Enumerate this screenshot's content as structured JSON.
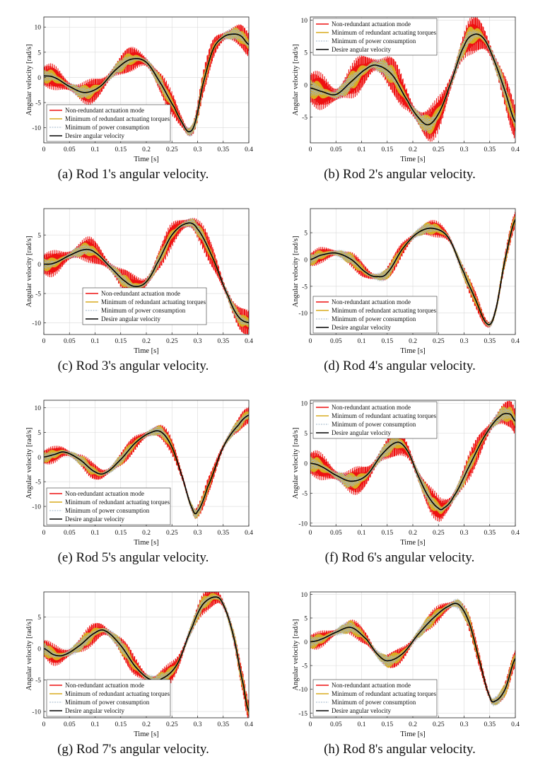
{
  "series_names": [
    "Non-redundant actuation mode",
    "Minimum of redundant actuating torques",
    "Minimum of power consumption",
    "Desire angular velocity"
  ],
  "colors": {
    "non_redundant": "#ee1111",
    "min_torque": "#d9ab1f",
    "min_power": "#9fb6c8",
    "desired": "#000000"
  },
  "xlabel": "Time [s]",
  "ylabel": "Angular velocity [rad/s]",
  "chart_data": [
    {
      "type": "line",
      "caption": "(a) Rod 1's angular velocity.",
      "xlim": [
        0,
        0.4
      ],
      "xticks": [
        "0",
        "0.05",
        "0.1",
        "0.15",
        "0.2",
        "0.25",
        "0.3",
        "0.35",
        "0.4"
      ],
      "ylim": [
        -13,
        12
      ],
      "yticks": [
        "-10",
        "-5",
        "0",
        "5",
        "10"
      ],
      "legend": "bottom-left",
      "desired": {
        "x": [
          0,
          0.02,
          0.05,
          0.08,
          0.11,
          0.14,
          0.17,
          0.2,
          0.23,
          0.255,
          0.27,
          0.283,
          0.295,
          0.31,
          0.33,
          0.35,
          0.37,
          0.385,
          0.4
        ],
        "y": [
          0.3,
          0.0,
          -1.8,
          -3.0,
          -1.8,
          1.5,
          3.6,
          3.0,
          -1.5,
          -6.0,
          -9.0,
          -10.8,
          -9.0,
          -1.5,
          5.5,
          8.0,
          8.6,
          8.2,
          6.5
        ]
      },
      "band_red": 2.6,
      "band_yellow": 1.5
    },
    {
      "type": "line",
      "caption": "(b) Rod 2's angular velocity.",
      "xlim": [
        0,
        0.4
      ],
      "xticks": [
        "0",
        "0.05",
        "0.1",
        "0.15",
        "0.2",
        "0.25",
        "0.3",
        "0.35",
        "0.4"
      ],
      "ylim": [
        -9,
        10.5
      ],
      "yticks": [
        "-5",
        "0",
        "5",
        "10"
      ],
      "legend": "top-left",
      "desired": {
        "x": [
          0,
          0.02,
          0.05,
          0.08,
          0.11,
          0.13,
          0.16,
          0.19,
          0.21,
          0.23,
          0.25,
          0.27,
          0.3,
          0.32,
          0.34,
          0.36,
          0.38,
          0.4
        ],
        "y": [
          -0.5,
          -1.0,
          -1.5,
          0.5,
          2.5,
          3.0,
          1.5,
          -2.5,
          -5.0,
          -6.2,
          -4.5,
          -0.5,
          6.0,
          7.8,
          7.0,
          3.5,
          -1.0,
          -5.8
        ]
      },
      "band_red": 3.0,
      "band_yellow": 1.6
    },
    {
      "type": "line",
      "caption": "(c) Rod 3's angular velocity.",
      "xlim": [
        0,
        0.4
      ],
      "xticks": [
        "0",
        "0.05",
        "0.1",
        "0.15",
        "0.2",
        "0.25",
        "0.3",
        "0.35",
        "0.4"
      ],
      "ylim": [
        -12,
        9.5
      ],
      "yticks": [
        "-10",
        "-5",
        "0",
        "5"
      ],
      "legend": "bottom-center",
      "desired": {
        "x": [
          0,
          0.02,
          0.05,
          0.08,
          0.1,
          0.13,
          0.16,
          0.18,
          0.2,
          0.22,
          0.25,
          0.28,
          0.3,
          0.33,
          0.36,
          0.38,
          0.4
        ],
        "y": [
          0.0,
          0.2,
          1.5,
          2.5,
          2.0,
          -0.5,
          -3.0,
          -3.8,
          -3.0,
          0.0,
          5.0,
          7.0,
          6.0,
          1.0,
          -5.5,
          -9.0,
          -10.0
        ]
      },
      "band_red": 2.3,
      "band_yellow": 1.2
    },
    {
      "type": "line",
      "caption": "(d) Rod 4's angular velocity.",
      "xlim": [
        0,
        0.4
      ],
      "xticks": [
        "0",
        "0.05",
        "0.1",
        "0.15",
        "0.2",
        "0.25",
        "0.3",
        "0.35",
        "0.4"
      ],
      "ylim": [
        -14,
        9.5
      ],
      "yticks": [
        "-10",
        "-5",
        "0",
        "5"
      ],
      "legend": "bottom-left",
      "desired": {
        "x": [
          0,
          0.02,
          0.05,
          0.08,
          0.11,
          0.13,
          0.15,
          0.18,
          0.21,
          0.24,
          0.27,
          0.3,
          0.32,
          0.345,
          0.36,
          0.38,
          0.4
        ],
        "y": [
          0.0,
          0.8,
          1.2,
          0.0,
          -2.5,
          -3.2,
          -2.5,
          2.0,
          5.0,
          5.8,
          4.0,
          -2.5,
          -7.0,
          -12.0,
          -10.0,
          0.0,
          7.5
        ]
      },
      "band_red": 1.6,
      "band_yellow": 1.2
    },
    {
      "type": "line",
      "caption": "(e) Rod 5's angular velocity.",
      "xlim": [
        0,
        0.4
      ],
      "xticks": [
        "0",
        "0.05",
        "0.1",
        "0.15",
        "0.2",
        "0.25",
        "0.3",
        "0.35",
        "0.4"
      ],
      "ylim": [
        -14,
        11.5
      ],
      "yticks": [
        "-10",
        "-5",
        "0",
        "5",
        "10"
      ],
      "legend": "bottom-left",
      "desired": {
        "x": [
          0,
          0.02,
          0.04,
          0.07,
          0.1,
          0.12,
          0.15,
          0.18,
          0.21,
          0.23,
          0.25,
          0.27,
          0.29,
          0.3,
          0.32,
          0.35,
          0.38,
          0.4
        ],
        "y": [
          0.0,
          0.5,
          1.0,
          -0.5,
          -3.0,
          -3.2,
          -0.5,
          3.0,
          5.0,
          5.0,
          2.0,
          -4.0,
          -10.5,
          -11.0,
          -6.0,
          2.0,
          6.5,
          8.5
        ]
      },
      "band_red": 1.8,
      "band_yellow": 1.2
    },
    {
      "type": "line",
      "caption": "(f) Rod 6's angular velocity.",
      "xlim": [
        0,
        0.4
      ],
      "xticks": [
        "0",
        "0.05",
        "0.1",
        "0.15",
        "0.2",
        "0.25",
        "0.3",
        "0.35",
        "0.4"
      ],
      "ylim": [
        -10.5,
        10.5
      ],
      "yticks": [
        "-10",
        "-5",
        "0",
        "5",
        "10"
      ],
      "legend": "top-left",
      "desired": {
        "x": [
          0,
          0.02,
          0.05,
          0.08,
          0.11,
          0.14,
          0.17,
          0.19,
          0.21,
          0.23,
          0.25,
          0.26,
          0.28,
          0.31,
          0.34,
          0.37,
          0.39,
          0.4
        ],
        "y": [
          0.0,
          -0.5,
          -2.0,
          -3.0,
          -2.0,
          1.5,
          3.5,
          2.0,
          -2.0,
          -5.5,
          -7.5,
          -7.5,
          -5.5,
          -0.5,
          4.5,
          7.8,
          8.2,
          7.0
        ]
      },
      "band_red": 2.4,
      "band_yellow": 1.4
    },
    {
      "type": "line",
      "caption": "(g) Rod 7's angular velocity.",
      "xlim": [
        0,
        0.4
      ],
      "xticks": [
        "0",
        "0.05",
        "0.1",
        "0.15",
        "0.2",
        "0.25",
        "0.3",
        "0.35",
        "0.4"
      ],
      "ylim": [
        -11,
        9
      ],
      "yticks": [
        "-10",
        "-5",
        "0",
        "5"
      ],
      "legend": "bottom-left",
      "desired": {
        "x": [
          0,
          0.02,
          0.04,
          0.07,
          0.1,
          0.12,
          0.15,
          0.18,
          0.21,
          0.23,
          0.26,
          0.29,
          0.31,
          0.335,
          0.35,
          0.37,
          0.39,
          0.4
        ],
        "y": [
          0.0,
          -1.0,
          -1.0,
          0.5,
          2.5,
          2.8,
          0.5,
          -3.0,
          -5.0,
          -4.8,
          -2.5,
          3.5,
          7.0,
          8.2,
          7.0,
          2.0,
          -6.0,
          -10.0
        ]
      },
      "band_red": 1.8,
      "band_yellow": 1.2
    },
    {
      "type": "line",
      "caption": "(h) Rod 8's angular velocity.",
      "xlim": [
        0,
        0.4
      ],
      "xticks": [
        "0",
        "0.05",
        "0.1",
        "0.15",
        "0.2",
        "0.25",
        "0.3",
        "0.35",
        "0.4"
      ],
      "ylim": [
        -16,
        10.5
      ],
      "yticks": [
        "-15",
        "-10",
        "-5",
        "0",
        "5",
        "10"
      ],
      "legend": "bottom-left",
      "desired": {
        "x": [
          0,
          0.02,
          0.05,
          0.08,
          0.11,
          0.13,
          0.15,
          0.18,
          0.21,
          0.24,
          0.27,
          0.29,
          0.31,
          0.33,
          0.35,
          0.36,
          0.38,
          0.4
        ],
        "y": [
          0.0,
          0.5,
          2.0,
          3.0,
          0.5,
          -2.5,
          -4.0,
          -2.5,
          1.5,
          5.0,
          7.5,
          7.8,
          4.0,
          -4.0,
          -11.5,
          -12.5,
          -10.0,
          -3.5
        ]
      },
      "band_red": 1.9,
      "band_yellow": 1.5
    }
  ]
}
